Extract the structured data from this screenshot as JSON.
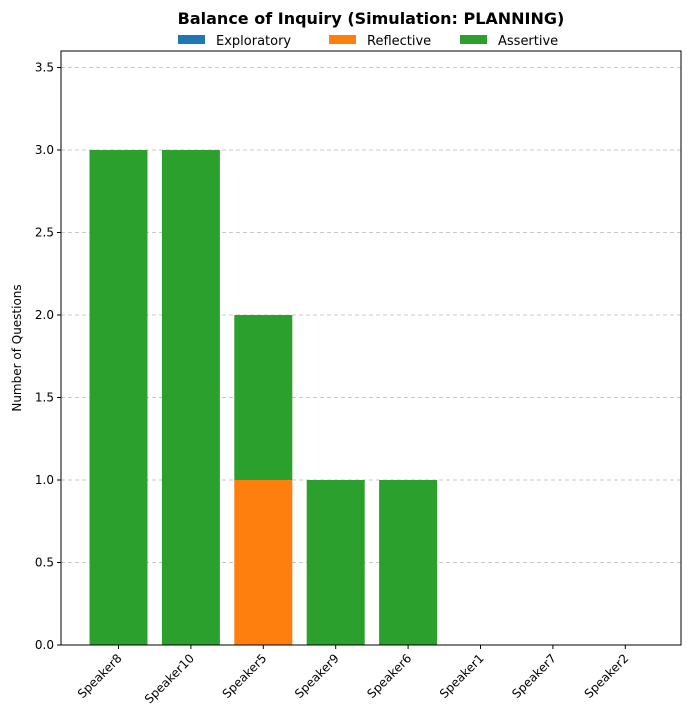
{
  "chart_data": {
    "type": "bar",
    "stacked": true,
    "title": "Balance of Inquiry (Simulation: PLANNING)",
    "xlabel": "",
    "ylabel": "Number of Questions",
    "categories": [
      "Speaker8",
      "Speaker10",
      "Speaker5",
      "Speaker9",
      "Speaker6",
      "Speaker1",
      "Speaker7",
      "Speaker2"
    ],
    "series": [
      {
        "name": "Exploratory",
        "color": "#1f77b4",
        "values": [
          0,
          0,
          0,
          0,
          0,
          0,
          0,
          0
        ]
      },
      {
        "name": "Reflective",
        "color": "#ff7f0e",
        "values": [
          0,
          0,
          1,
          0,
          0,
          0,
          0,
          0
        ]
      },
      {
        "name": "Assertive",
        "color": "#2ca02c",
        "values": [
          3,
          3,
          1,
          1,
          1,
          0,
          0,
          0
        ]
      }
    ],
    "ylim": [
      0,
      3.6
    ],
    "yticks": [
      "0.0",
      "0.5",
      "1.0",
      "1.5",
      "2.0",
      "2.5",
      "3.0",
      "3.5"
    ],
    "grid": "horizontal dashed",
    "legend_position": "top-center"
  }
}
